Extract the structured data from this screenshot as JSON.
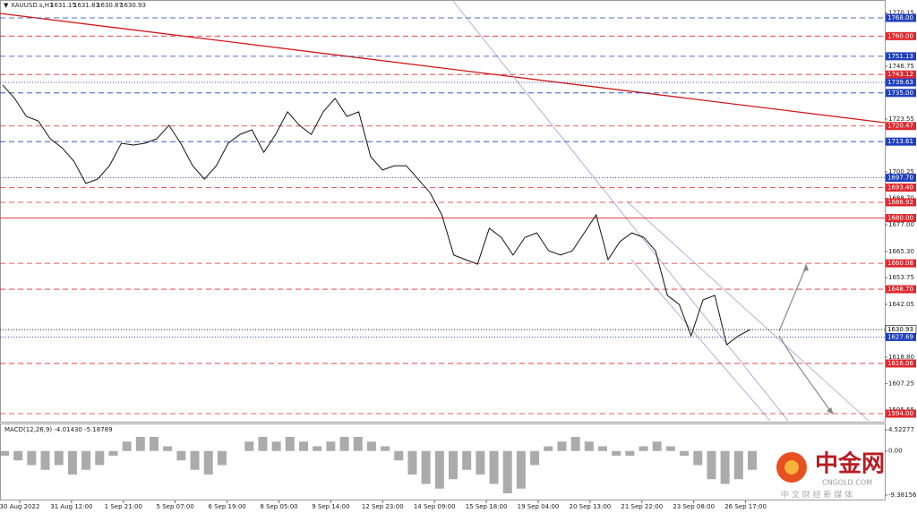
{
  "chart_data": {
    "type": "line",
    "header": {
      "symbol": "XAUUSD.s,H1",
      "ohlc": [
        1631.15,
        1631.83,
        1630.87,
        1630.93
      ]
    },
    "ylim": [
      1590.85,
      1775.09
    ],
    "yticks": [
      1770.15,
      1746.75,
      1723.55,
      1700.25,
      {
        "value": 1688.7,
        "label": "1688.70"
      },
      {
        "value": 1677,
        "label": "1677.00"
      },
      {
        "value": 1665.3,
        "label": "1665.30"
      },
      1653.75,
      1642.05,
      {
        "value": 1618.8,
        "label": "1618.80"
      },
      1607.25,
      1595.55
    ],
    "levels": [
      {
        "value": 1768,
        "label": "1768.00",
        "color": "#1f3fbf",
        "style": "dash"
      },
      {
        "value": 1760,
        "label": "1760.00",
        "color": "#e0282e",
        "style": "dash"
      },
      {
        "value": 1751.13,
        "label": "1751.13",
        "color": "#1f3fbf",
        "style": "dash"
      },
      {
        "value": 1743.12,
        "label": "1743.12",
        "color": "#e0282e",
        "style": "dash"
      },
      {
        "value": 1739.63,
        "label": "1739.63",
        "color": "#1f3fbf",
        "style": "dot"
      },
      {
        "value": 1735,
        "label": "1735.00",
        "color": "#1f3fbf",
        "style": "dash"
      },
      {
        "value": 1720.47,
        "label": "1720.47",
        "color": "#e0282e",
        "style": "dash"
      },
      {
        "value": 1713.61,
        "label": "1713.61",
        "color": "#1f3fbf",
        "style": "dash"
      },
      {
        "value": 1697.7,
        "label": "1697.70",
        "color": "#1f3fbf",
        "style": "dot"
      },
      {
        "value": 1693.4,
        "label": "1693.40",
        "color": "#e0282e",
        "style": "dash"
      },
      {
        "value": 1686.92,
        "label": "1686.92",
        "color": "#e0282e",
        "style": "dash"
      },
      {
        "value": 1680,
        "label": "1680.00",
        "color": "#e0282e",
        "style": "solid"
      },
      {
        "value": 1660.08,
        "label": "1660.08",
        "color": "#e0282e",
        "style": "dash"
      },
      {
        "value": 1648.7,
        "label": "1648.70",
        "color": "#e0282e",
        "style": "dash"
      },
      {
        "value": 1630.93,
        "label": "1630.93",
        "color": "#000000",
        "style": "dot"
      },
      {
        "value": 1627.69,
        "label": "1627.69",
        "color": "#1f3fbf",
        "style": "dot"
      },
      {
        "value": 1616.06,
        "label": "1616.06",
        "color": "#e0282e",
        "style": "dash"
      },
      {
        "value": 1594,
        "label": "1594.00",
        "color": "#e0282e",
        "style": "dash"
      }
    ],
    "xtick_labels": [
      "30 Aug 2022",
      "31 Aug 12:00",
      "1 Sep 21:00",
      "5 Sep 07:00",
      "6 Sep 19:00",
      "8 Sep 05:00",
      "9 Sep 14:00",
      "12 Sep 23:00",
      "14 Sep 09:00",
      "15 Sep 18:00",
      "19 Sep 04:00",
      "20 Sep 13:00",
      "21 Sep 22:00",
      "23 Sep 08:00",
      "26 Sep 17:00"
    ],
    "series": [
      {
        "name": "XAUUSD.s",
        "color": "#111111",
        "values": [
          1738.5,
          1732.6,
          1724.7,
          1722.7,
          1714.9,
          1710.9,
          1705,
          1695.2,
          1697.1,
          1703,
          1712.9,
          1712.1,
          1712.9,
          1714.9,
          1720.8,
          1712.9,
          1703,
          1697.1,
          1703,
          1712.9,
          1716.8,
          1718.8,
          1708.9,
          1716.8,
          1726.7,
          1720.8,
          1716.8,
          1726.7,
          1732.6,
          1724.7,
          1726.7,
          1707,
          1701.1,
          1703,
          1703,
          1697.1,
          1691.2,
          1681.4,
          1663.7,
          1661.7,
          1659.7,
          1675.5,
          1671.5,
          1663.7,
          1671.5,
          1673.5,
          1665.6,
          1663.7,
          1665.6,
          1673.5,
          1681.4,
          1661.7,
          1669.6,
          1673.5,
          1671.5,
          1665.6,
          1646,
          1642,
          1628.2,
          1644,
          1646,
          1624.3,
          1628.2,
          1631
        ]
      }
    ],
    "macd": {
      "label": "MACD(12,26,9) -4.01430 -5.18789",
      "ylim": [
        -9.38156,
        4.52277
      ],
      "yticks": [
        4.52277,
        {
          "value": 0,
          "label": "0.00"
        },
        -9.38156
      ],
      "color": "#888888",
      "values": [
        -1,
        -2,
        -3,
        -4,
        -3,
        -5,
        -4,
        -3,
        -1,
        2,
        3,
        3,
        1,
        -2,
        -4,
        -5,
        -3,
        0,
        2,
        3,
        2,
        3,
        2,
        1,
        2,
        3,
        3,
        2,
        1,
        -2,
        -5,
        -7,
        -8,
        -6,
        -4,
        -5,
        -7,
        -9,
        -8,
        -3,
        1,
        2,
        3,
        2,
        1,
        -1,
        -1,
        1,
        2,
        1,
        -1,
        -3,
        -6,
        -7,
        -6,
        -4
      ]
    }
  },
  "watermark": {
    "logo": "中金网",
    "site": "CNGOLD.COM",
    "slogan": "中 文 财 经 新 媒 体"
  }
}
